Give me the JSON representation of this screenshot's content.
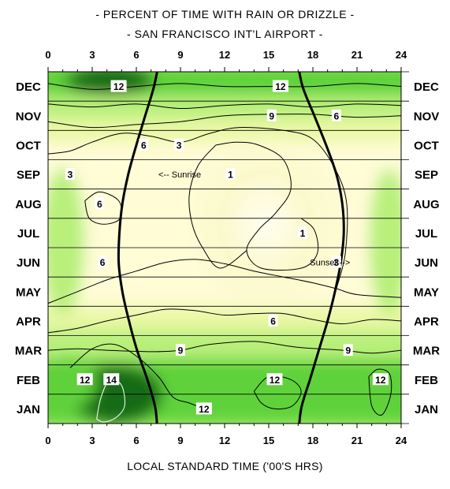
{
  "chart_data": {
    "type": "heatmap",
    "title": "- PERCENT OF TIME WITH RAIN OR DRIZZLE -",
    "subtitle": "- SAN FRANCISCO INT'L AIRPORT -",
    "xlabel": "LOCAL STANDARD TIME ('00'S HRS)",
    "ylabel": "",
    "xlim": [
      0,
      24
    ],
    "x_ticks": [
      "0",
      "3",
      "6",
      "9",
      "12",
      "15",
      "18",
      "21",
      "24"
    ],
    "months": [
      "JAN",
      "FEB",
      "MAR",
      "APR",
      "MAY",
      "JUN",
      "JUL",
      "AUG",
      "SEP",
      "OCT",
      "NOV",
      "DEC"
    ],
    "contour_levels": [
      1,
      3,
      6,
      9,
      12,
      14
    ],
    "contour_labels": [
      {
        "text": "12",
        "hour": 4.8,
        "month": "DEC"
      },
      {
        "text": "12",
        "hour": 15.8,
        "month": "DEC"
      },
      {
        "text": "9",
        "hour": 15.2,
        "month": "NOV"
      },
      {
        "text": "6",
        "hour": 19.6,
        "month": "NOV"
      },
      {
        "text": "6",
        "hour": 6.5,
        "month": "OCT"
      },
      {
        "text": "3",
        "hour": 8.9,
        "month": "OCT"
      },
      {
        "text": "3",
        "hour": 1.5,
        "month": "SEP"
      },
      {
        "text": "1",
        "hour": 12.4,
        "month": "SEP"
      },
      {
        "text": "6",
        "hour": 3.5,
        "month": "AUG"
      },
      {
        "text": "1",
        "hour": 17.3,
        "month": "JUL"
      },
      {
        "text": "6",
        "hour": 3.7,
        "month": "JUN"
      },
      {
        "text": "3",
        "hour": 19.6,
        "month": "JUN"
      },
      {
        "text": "6",
        "hour": 15.3,
        "month": "APR"
      },
      {
        "text": "9",
        "hour": 9.0,
        "month": "MAR"
      },
      {
        "text": "9",
        "hour": 20.4,
        "month": "MAR"
      },
      {
        "text": "12",
        "hour": 2.5,
        "month": "FEB"
      },
      {
        "text": "14",
        "hour": 4.3,
        "month": "FEB"
      },
      {
        "text": "12",
        "hour": 15.4,
        "month": "FEB"
      },
      {
        "text": "12",
        "hour": 22.6,
        "month": "FEB"
      },
      {
        "text": "12",
        "hour": 10.6,
        "month": "JAN"
      }
    ],
    "annotations": [
      {
        "text": "<-- Sunrise",
        "hour": 7.5,
        "month": "SEP"
      },
      {
        "text": "Sunset -->",
        "hour": 17.8,
        "month": "JUN"
      }
    ],
    "sunrise_hour": [
      7.45,
      7.3,
      6.75,
      6.05,
      5.5,
      5.05,
      4.8,
      4.85,
      5.05,
      5.45,
      6.0,
      6.6,
      7.2,
      7.6
    ],
    "sunset_hour": [
      17.0,
      17.2,
      17.8,
      18.4,
      19.0,
      19.5,
      19.9,
      20.1,
      20.0,
      19.6,
      18.9,
      18.1,
      17.3,
      16.9
    ],
    "colors": {
      "lowest": "#fffcd6",
      "low": "#eaf8a6",
      "mid": "#b8f07a",
      "high": "#5fd23a",
      "highest": "#186c12",
      "sun_line": "#000000"
    }
  }
}
